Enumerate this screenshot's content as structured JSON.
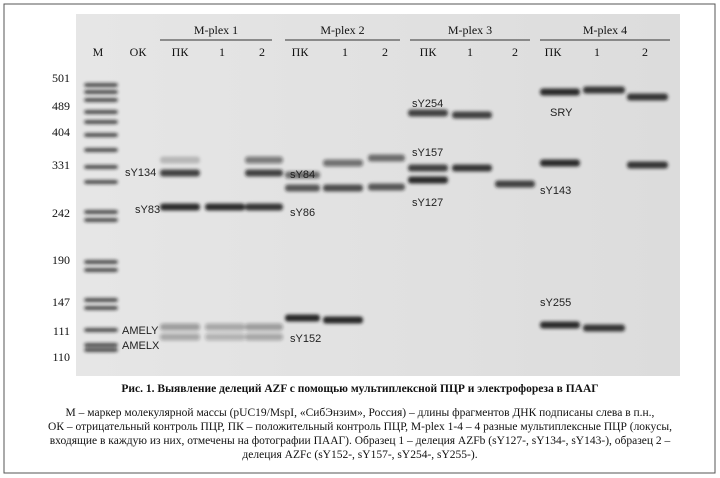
{
  "figure": {
    "groups": [
      "M-plex 1",
      "M-plex 2",
      "M-plex 3",
      "M-plex 4"
    ],
    "lanes": [
      "М",
      "ОК",
      "ПК",
      "1",
      "2",
      "ПК",
      "1",
      "2",
      "ПК",
      "1",
      "2",
      "ПК",
      "1",
      "2"
    ],
    "ladder": [
      501,
      489,
      404,
      331,
      242,
      190,
      147,
      111,
      110
    ],
    "band_labels": [
      "sY134",
      "sY83",
      "AMELY",
      "AMELX",
      "sY84",
      "sY86",
      "sY152",
      "sY254",
      "sY157",
      "sY127",
      "SRY",
      "sY143",
      "sY255"
    ]
  },
  "caption": {
    "title": "Рис. 1. Выявление делеций AZF с помощью мультиплексной ПЦР и электрофореза в ПААГ",
    "lines": [
      "М – маркер молекулярной массы (pUC19/MspI, «СибЭнзим», Россия) – длины фрагментов ДНК подписаны слева в п.н.,",
      "ОК – отрицательный контроль ПЦР, ПК – положительный контроль ПЦР, M-plex 1-4 – 4 разные мультиплексные ПЦР (локусы,",
      "входящие в каждую из них, отмечены на фотографии ПААГ). Образец 1 – делеция AZFb (sY127-, sY134-, sY143-), образец 2 –",
      "делеция AZFc (sY152-, sY157-, sY254-, sY255-)."
    ]
  }
}
